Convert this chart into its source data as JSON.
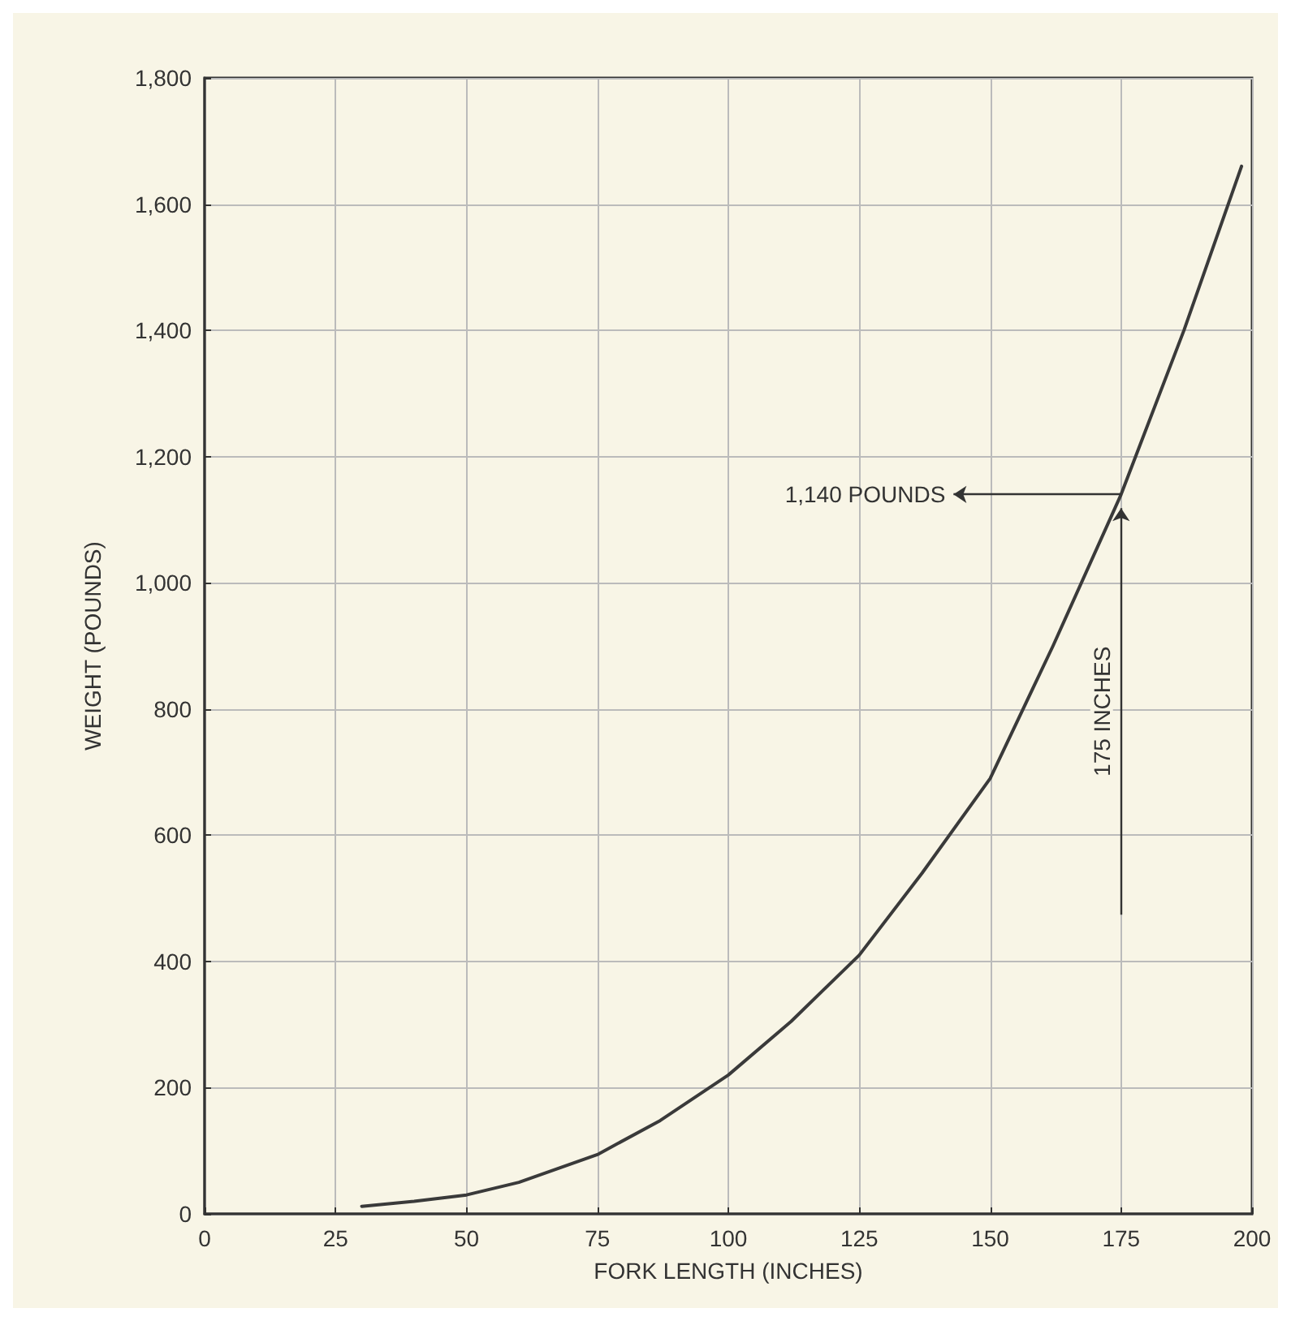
{
  "chart_data": {
    "type": "line",
    "xlabel": "FORK LENGTH (INCHES)",
    "ylabel": "WEIGHT (POUNDS)",
    "x": [
      30,
      40,
      50,
      60,
      75,
      87,
      100,
      112,
      125,
      137,
      150,
      162,
      175,
      187,
      198
    ],
    "series": [
      {
        "color": "#3a3a3a",
        "values": [
          12,
          20,
          30,
          50,
          94,
          148,
          220,
          305,
          410,
          540,
          690,
          900,
          1140,
          1400,
          1660
        ]
      }
    ],
    "xlim": [
      0,
      200
    ],
    "xticks": [
      0,
      25,
      50,
      75,
      100,
      125,
      150,
      175,
      200
    ],
    "ylim": [
      0,
      1800
    ],
    "yticks": [
      0,
      200,
      400,
      600,
      800,
      {
        "value": 1000,
        "label": "1,000"
      },
      {
        "value": 1200,
        "label": "1,200"
      },
      {
        "value": 1400,
        "label": "1,400"
      },
      {
        "value": 1600,
        "label": "1,600"
      },
      {
        "value": 1800,
        "label": "1,800"
      }
    ],
    "grid": true,
    "marker": "none",
    "line_style": "solid",
    "annotations": [
      {
        "text": "1,140 POUNDS",
        "x": 175,
        "y": 1140
      },
      "175 INCHES"
    ]
  }
}
